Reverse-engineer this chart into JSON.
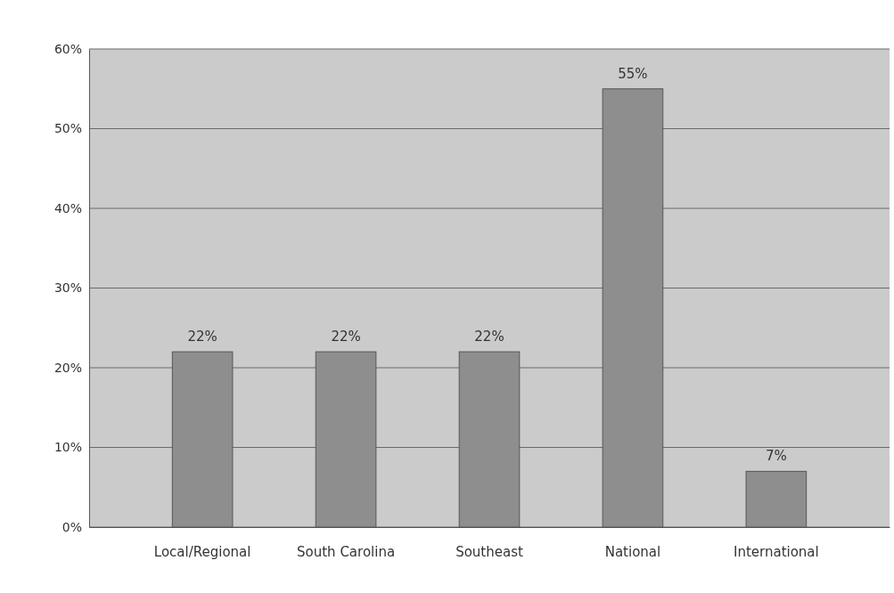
{
  "chart_data": {
    "type": "bar",
    "categories": [
      "Local/Regional",
      "South Carolina",
      "Southeast",
      "National",
      "International"
    ],
    "values": [
      22,
      22,
      22,
      55,
      7
    ],
    "value_labels": [
      "22%",
      "22%",
      "22%",
      "55%",
      "7%"
    ],
    "color": "#8e8e8e",
    "grid": "y",
    "ylim": [
      0,
      60
    ],
    "yticks": [
      {
        "value": 0,
        "label": "0%"
      },
      {
        "value": 10,
        "label": "10%"
      },
      {
        "value": 20,
        "label": "20%"
      },
      {
        "value": 30,
        "label": "30%"
      },
      {
        "value": 40,
        "label": "40%"
      },
      {
        "value": 50,
        "label": "50%"
      },
      {
        "value": 60,
        "label": "60%"
      }
    ]
  }
}
